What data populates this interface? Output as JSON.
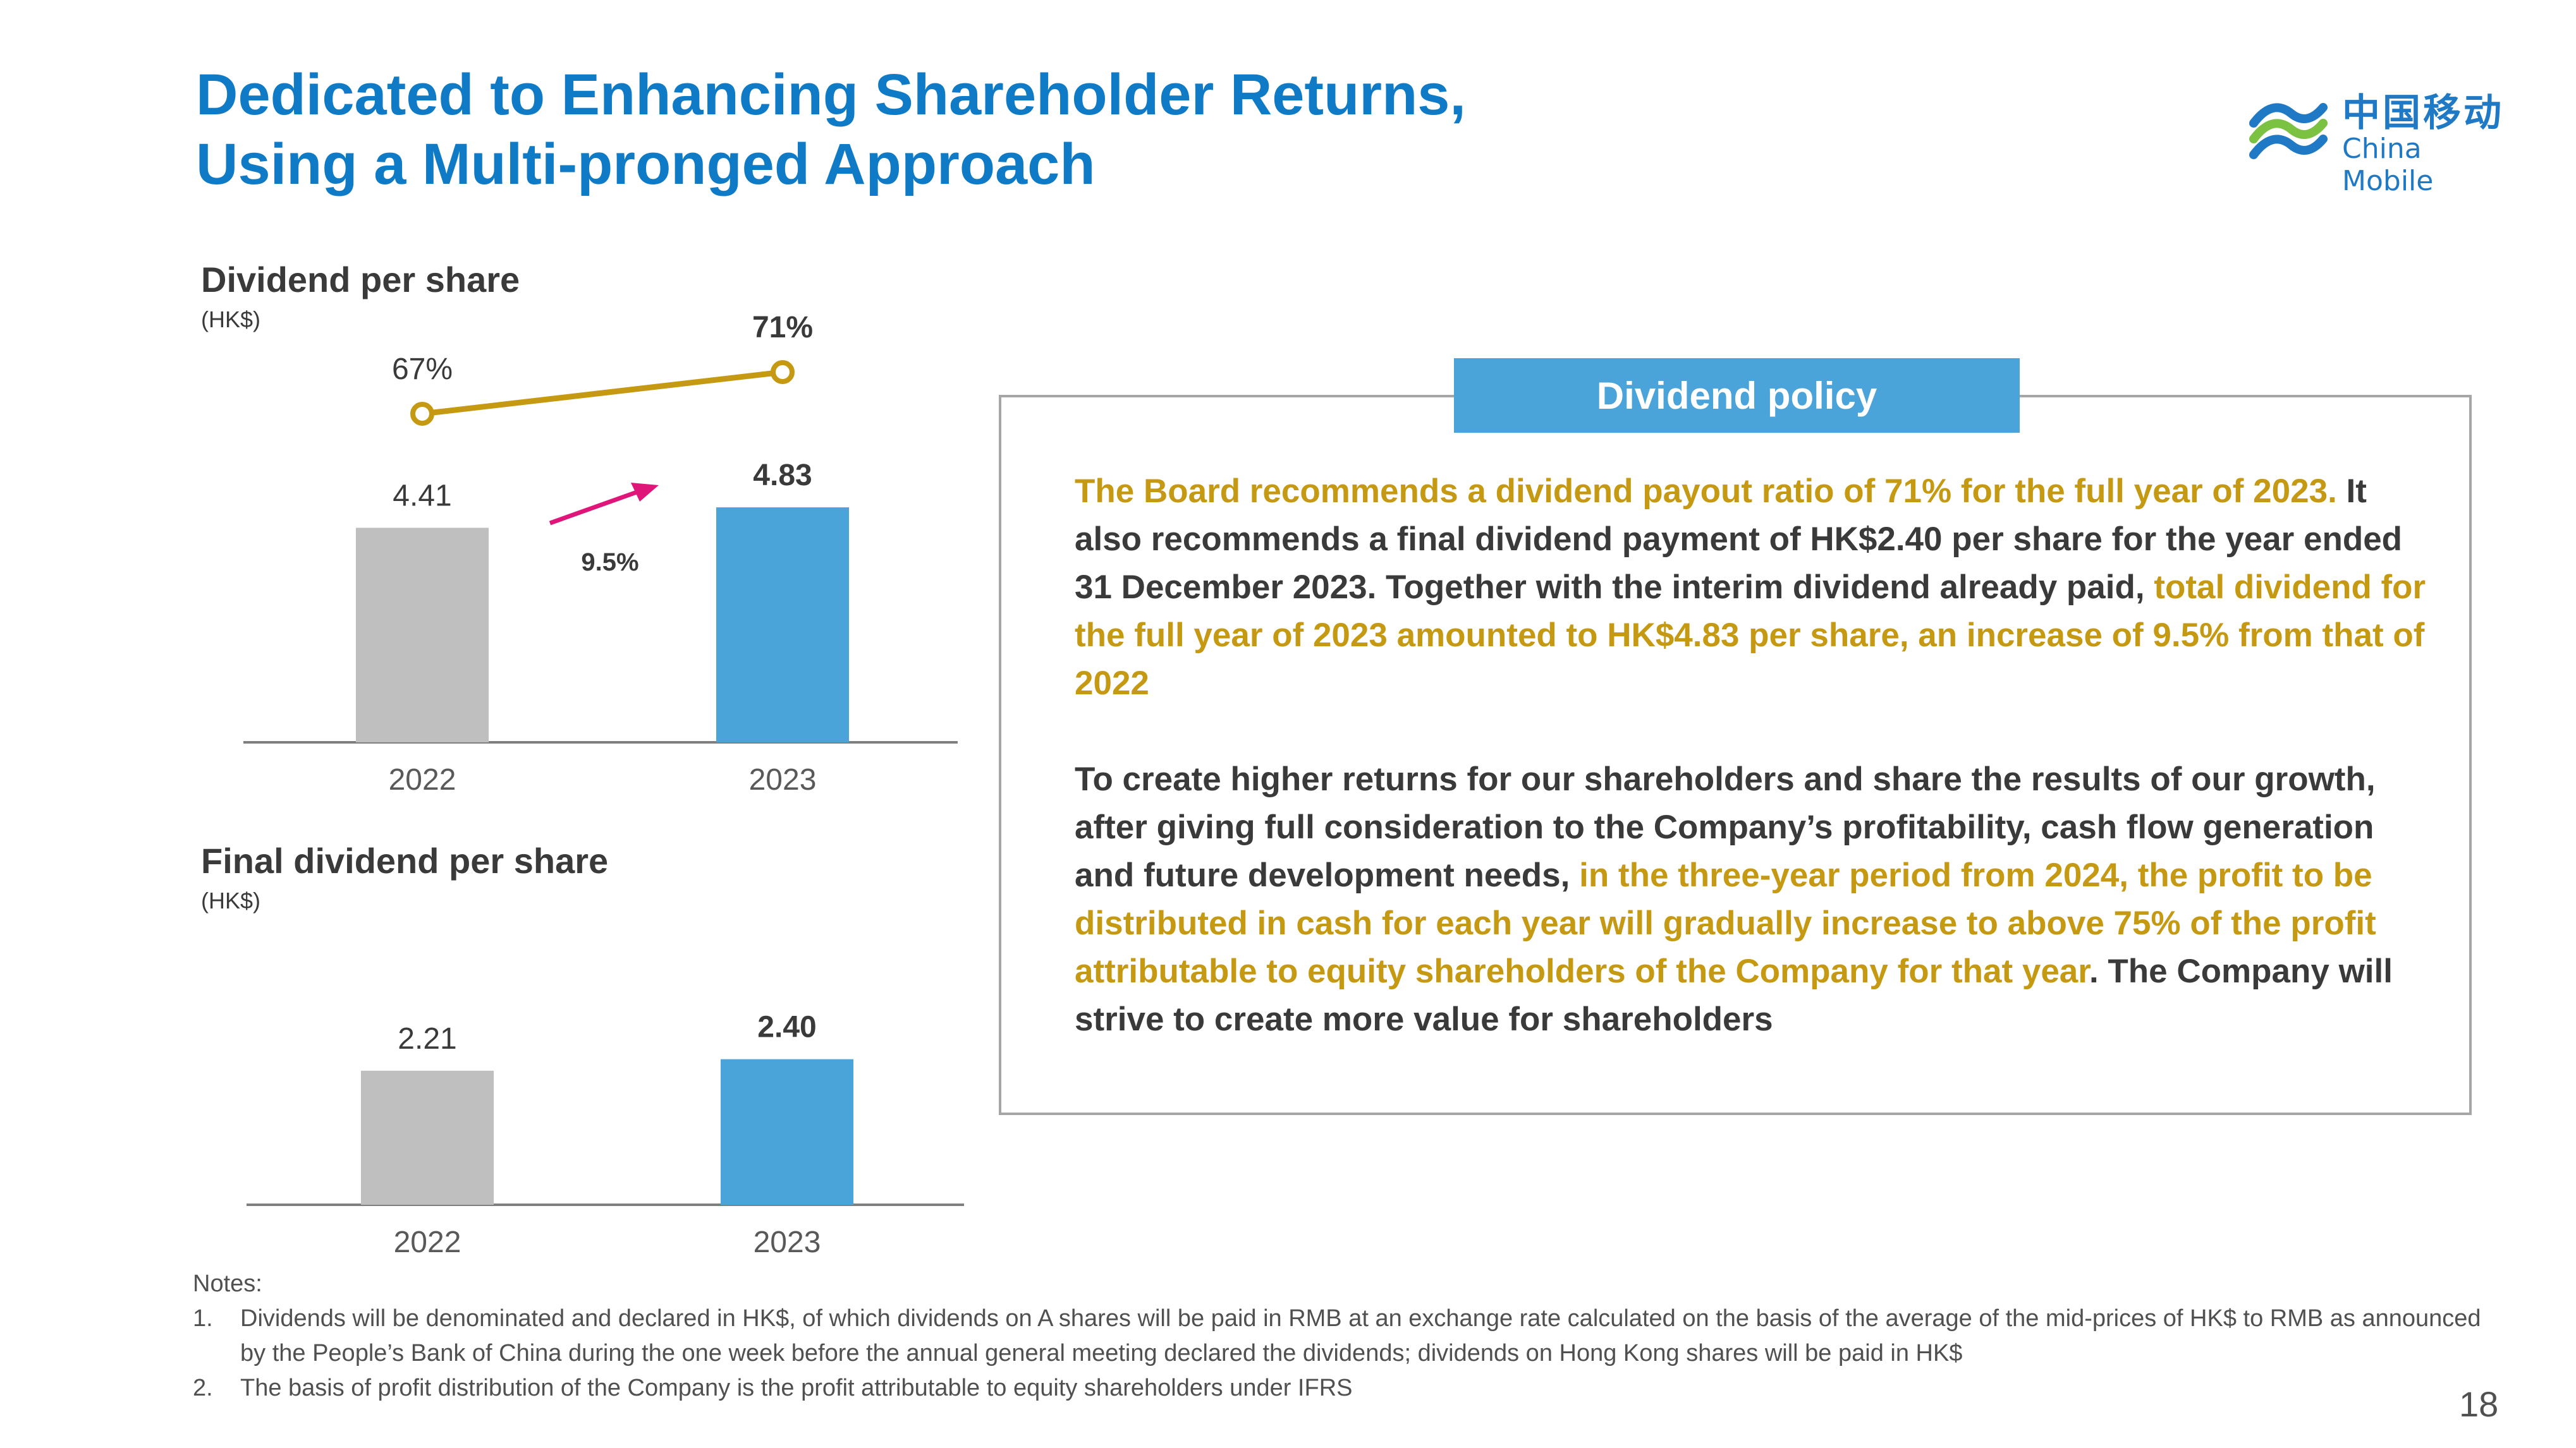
{
  "slide": {
    "title_line1": "Dedicated to Enhancing Shareholder Returns,",
    "title_line2": "Using a Multi-pronged Approach",
    "page_number": "18"
  },
  "logo": {
    "chinese": "中国移动",
    "english": "China Mobile"
  },
  "chart_data": [
    {
      "type": "bar",
      "title": "Dividend per share",
      "unit": "(HK$)",
      "categories": [
        "2022",
        "2023"
      ],
      "values": [
        4.41,
        4.83
      ],
      "value_labels": [
        "4.41",
        "4.83"
      ],
      "bar_colors": [
        "#bfbfbf",
        "#4aa3d9"
      ],
      "growth_label": "9.5%",
      "growth_arrow_color": "#e0157a",
      "payout_line": {
        "values": [
          67,
          71
        ],
        "labels": [
          "67%",
          "71%"
        ],
        "color": "#c59a12"
      }
    },
    {
      "type": "bar",
      "title": "Final dividend per share",
      "unit": "(HK$)",
      "categories": [
        "2022",
        "2023"
      ],
      "values": [
        2.21,
        2.4
      ],
      "value_labels": [
        "2.21",
        "2.40"
      ],
      "bar_colors": [
        "#bfbfbf",
        "#4aa3d9"
      ]
    }
  ],
  "policy": {
    "header": "Dividend policy",
    "p1_gold_a": "The Board recommends a dividend payout ratio of 71% for the full year of 2023.",
    "p1_plain": " It also recommends a final dividend payment of HK$2.40 per share for the year ended 31 December 2023.  Together with the interim dividend already paid, ",
    "p1_gold_b": "total dividend for the full year of 2023 amounted to HK$4.83 per share, an increase of 9.5% from that of 2022",
    "p2_plain_a": "To create higher returns for our shareholders and share the results of our growth, after giving full consideration to the Company’s profitability, cash flow generation and future development needs, ",
    "p2_gold": "in the three-year period from 2024, the profit to be distributed in cash for each year will gradually increase to above 75% of the profit attributable to equity shareholders of the Company for that year",
    "p2_plain_b": ".  The Company will strive to create more value for shareholders"
  },
  "notes": {
    "heading": "Notes:",
    "items": [
      {
        "num": "1.",
        "text": "Dividends will be denominated and declared in HK$, of which dividends on A shares will be paid in RMB at an exchange rate calculated on the basis of the average of the mid-prices of HK$ to RMB as announced by the People’s Bank of China during the one week before the annual general meeting declared the dividends; dividends on Hong Kong shares will be paid in HK$"
      },
      {
        "num": "2.",
        "text": "The basis of profit distribution of the Company is the profit attributable to equity shareholders under IFRS"
      }
    ]
  }
}
